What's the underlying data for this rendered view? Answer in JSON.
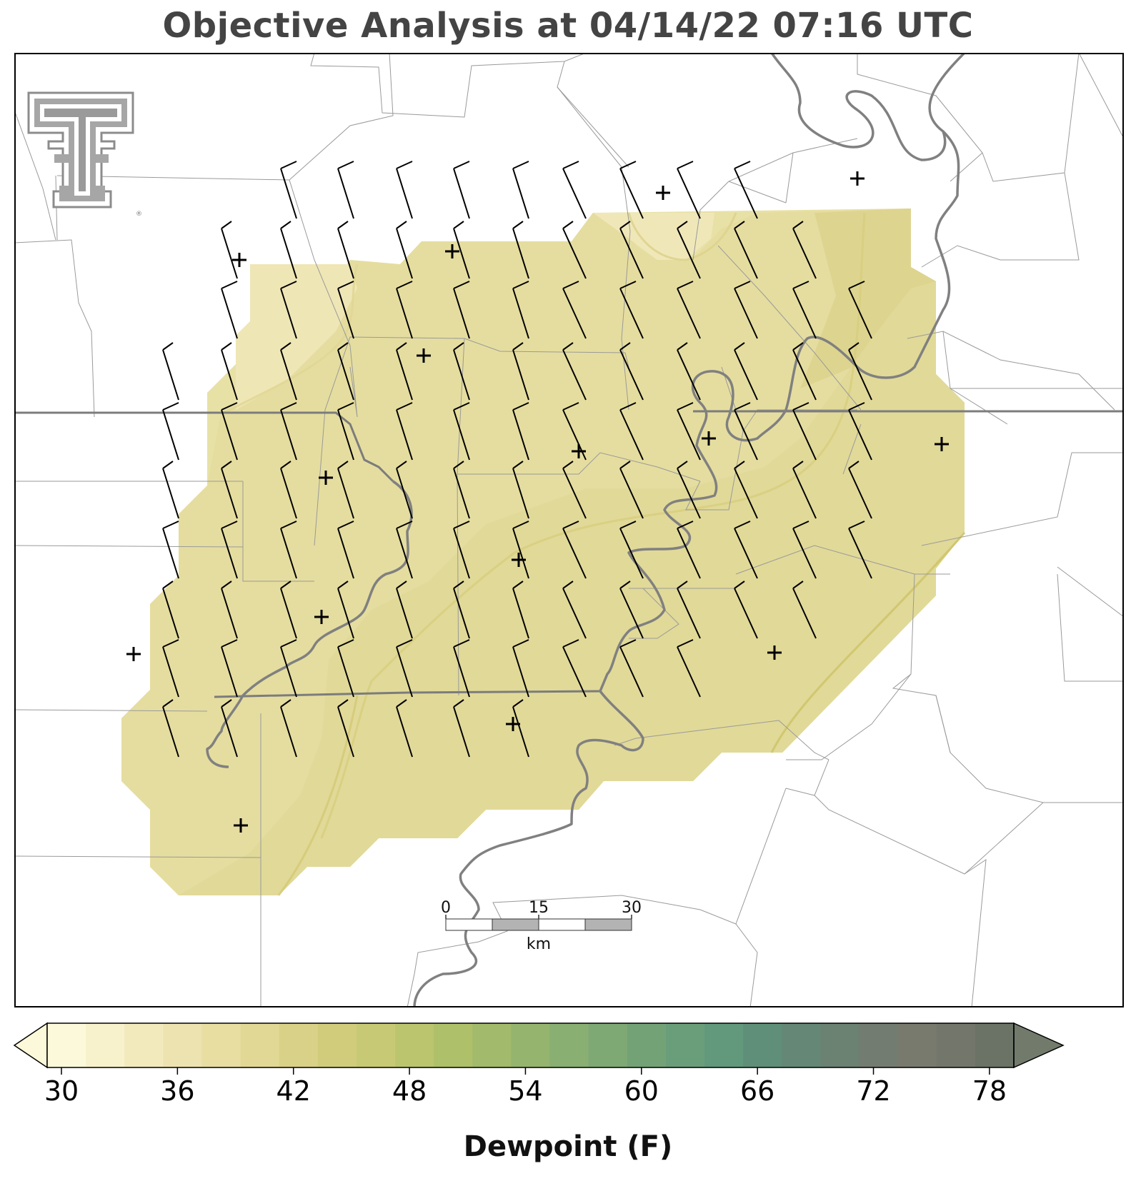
{
  "title": "Objective Analysis at 04/14/22 07:16 UTC",
  "logo": {
    "icon": "texas-tech-double-t-logo",
    "mark": "®"
  },
  "scale_bar": {
    "ticks": [
      "0",
      "15",
      "30"
    ],
    "unit": "km"
  },
  "colorbar": {
    "label": "Dewpoint (F)",
    "tick_labels": [
      "30",
      "36",
      "42",
      "48",
      "54",
      "60",
      "66",
      "72",
      "78"
    ],
    "min": 30,
    "max": 80,
    "step": 2,
    "colors": [
      "#fcf9da",
      "#f7f2cc",
      "#f2e9bd",
      "#ede3b0",
      "#e8dea2",
      "#e1d895",
      "#d9d187",
      "#d0cc7c",
      "#c7c974",
      "#bac56e",
      "#aec069",
      "#a2ba6b",
      "#95b46e",
      "#89af72",
      "#7ea874",
      "#74a277",
      "#6a9e7a",
      "#62987c",
      "#5f8f78",
      "#648875",
      "#6b8172",
      "#737c70",
      "#777a6d",
      "#73776b",
      "#6b7266"
    ],
    "extend": "both"
  },
  "map": {
    "contours_shown": [
      36,
      38,
      40,
      42
    ],
    "station_marker": "plus",
    "wind_direction": "north-northwest"
  }
}
